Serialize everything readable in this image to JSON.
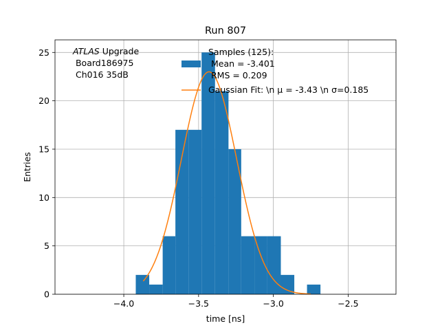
{
  "chart_data": {
    "type": "bar",
    "title": "Run 807",
    "xlabel": "time [ns]",
    "ylabel": "Entries",
    "xlim": [
      -4.46,
      -2.18
    ],
    "ylim": [
      0,
      26.3
    ],
    "xticks": [
      -4.0,
      -3.5,
      -3.0,
      -2.5
    ],
    "xtick_labels": [
      "−4.0",
      "−3.5",
      "−3.0",
      "−2.5"
    ],
    "yticks": [
      0,
      5,
      10,
      15,
      20,
      25
    ],
    "ytick_labels": [
      "0",
      "5",
      "10",
      "15",
      "20",
      "25"
    ],
    "grid": true,
    "annotation": {
      "italic": "ATLAS",
      "line1_rest": " Upgrade",
      "line2": " Board186975",
      "line3": " Ch016 35dB"
    },
    "legend": {
      "placement": "top-right",
      "hist_lines": [
        "Samples (125):",
        " Mean = -3.401",
        " RMS = 0.209"
      ],
      "fit_label": "Gaussian Fit: \\n μ = -3.43 \\n σ=0.185"
    },
    "histogram": {
      "name": "Samples (125)",
      "color": "#1f77b4",
      "bins": [
        {
          "x0": -3.92,
          "x1": -3.83,
          "count": 2
        },
        {
          "x0": -3.83,
          "x1": -3.74,
          "count": 1
        },
        {
          "x0": -3.74,
          "x1": -3.655,
          "count": 6
        },
        {
          "x0": -3.655,
          "x1": -3.565,
          "count": 17
        },
        {
          "x0": -3.565,
          "x1": -3.48,
          "count": 17
        },
        {
          "x0": -3.48,
          "x1": -3.39,
          "count": 25
        },
        {
          "x0": -3.39,
          "x1": -3.3,
          "count": 21
        },
        {
          "x0": -3.3,
          "x1": -3.215,
          "count": 15
        },
        {
          "x0": -3.215,
          "x1": -3.125,
          "count": 6
        },
        {
          "x0": -3.125,
          "x1": -3.04,
          "count": 6
        },
        {
          "x0": -3.04,
          "x1": -2.95,
          "count": 6
        },
        {
          "x0": -2.95,
          "x1": -2.86,
          "count": 2
        },
        {
          "x0": -2.86,
          "x1": -2.775,
          "count": 0
        },
        {
          "x0": -2.775,
          "x1": -2.685,
          "count": 1
        }
      ]
    },
    "fit": {
      "name": "Gaussian Fit",
      "color": "#ff7f0e",
      "mu": -3.43,
      "sigma": 0.185,
      "amplitude": 23.0,
      "x_range": [
        -3.87,
        -2.75
      ]
    }
  }
}
